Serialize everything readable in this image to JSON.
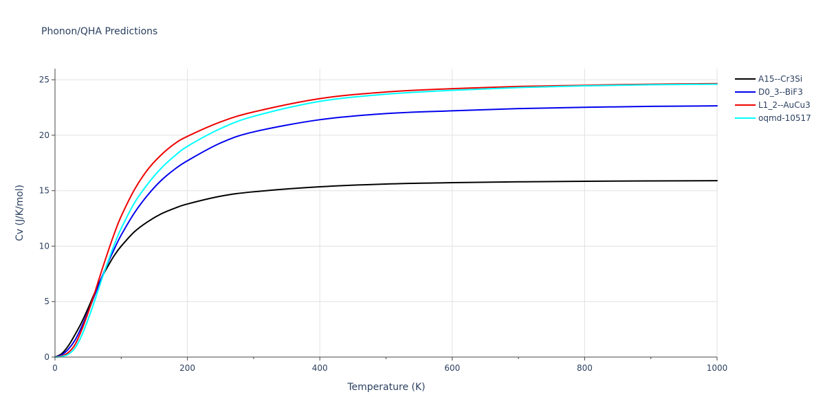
{
  "chart_data": {
    "type": "line",
    "title": "Phonon/QHA Predictions",
    "xlabel": "Temperature (K)",
    "ylabel": "Cv (J/K/mol)",
    "xlim": [
      0,
      1000
    ],
    "ylim": [
      0,
      26
    ],
    "xticks": [
      0,
      200,
      400,
      600,
      800,
      1000
    ],
    "yticks": [
      0,
      5,
      10,
      15,
      20,
      25
    ],
    "grid": true,
    "legend_position": "top-right",
    "series": [
      {
        "name": "A15--Cr3Si",
        "color": "#000000",
        "x": [
          0,
          10,
          20,
          30,
          40,
          50,
          60,
          70,
          80,
          90,
          100,
          120,
          140,
          160,
          180,
          200,
          250,
          300,
          400,
          500,
          600,
          700,
          800,
          900,
          1000
        ],
        "y": [
          0,
          0.3,
          1.0,
          2.0,
          3.1,
          4.4,
          5.8,
          7.1,
          8.2,
          9.2,
          10.0,
          11.3,
          12.2,
          12.9,
          13.4,
          13.8,
          14.5,
          14.9,
          15.35,
          15.6,
          15.72,
          15.8,
          15.85,
          15.88,
          15.9
        ]
      },
      {
        "name": "D0_3--BiF3",
        "color": "#0000ee",
        "x": [
          0,
          10,
          20,
          30,
          40,
          50,
          60,
          70,
          80,
          90,
          100,
          120,
          140,
          160,
          180,
          200,
          250,
          300,
          400,
          500,
          600,
          700,
          800,
          900,
          1000
        ],
        "y": [
          0,
          0.2,
          0.7,
          1.5,
          2.7,
          4.1,
          5.6,
          7.1,
          8.5,
          9.8,
          11.0,
          13.0,
          14.6,
          15.9,
          16.9,
          17.7,
          19.3,
          20.3,
          21.4,
          21.95,
          22.2,
          22.4,
          22.52,
          22.6,
          22.65
        ]
      },
      {
        "name": "L1_2--AuCu3",
        "color": "#ee0000",
        "x": [
          0,
          10,
          20,
          30,
          40,
          50,
          60,
          70,
          80,
          90,
          100,
          120,
          140,
          160,
          180,
          200,
          250,
          300,
          400,
          500,
          600,
          700,
          800,
          900,
          1000
        ],
        "y": [
          0,
          0.1,
          0.4,
          1.1,
          2.4,
          4.0,
          5.8,
          7.7,
          9.5,
          11.2,
          12.7,
          15.1,
          16.9,
          18.2,
          19.2,
          19.9,
          21.2,
          22.1,
          23.3,
          23.9,
          24.2,
          24.4,
          24.5,
          24.6,
          24.65
        ]
      },
      {
        "name": "oqmd-10517",
        "color": "#00ffff",
        "x": [
          0,
          10,
          20,
          30,
          40,
          50,
          60,
          70,
          80,
          90,
          100,
          120,
          140,
          160,
          180,
          200,
          250,
          300,
          400,
          500,
          600,
          700,
          800,
          900,
          1000
        ],
        "y": [
          0,
          0.05,
          0.25,
          0.8,
          1.9,
          3.4,
          5.1,
          6.9,
          8.6,
          10.2,
          11.6,
          13.9,
          15.6,
          17.0,
          18.1,
          19.0,
          20.6,
          21.7,
          23.05,
          23.7,
          24.05,
          24.3,
          24.45,
          24.55,
          24.6
        ]
      }
    ]
  }
}
